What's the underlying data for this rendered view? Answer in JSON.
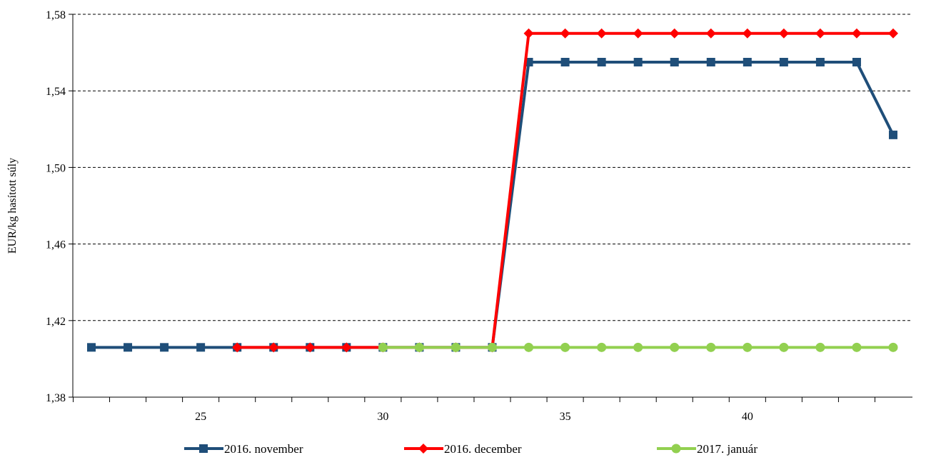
{
  "chart_data": {
    "type": "line",
    "title": "",
    "xlabel": "",
    "ylabel": "EUR/kg hasított súly",
    "x": [
      22,
      23,
      24,
      25,
      26,
      27,
      28,
      29,
      30,
      31,
      32,
      33,
      34,
      35,
      36,
      37,
      38,
      39,
      40,
      41,
      42,
      43,
      44
    ],
    "xlim": [
      22,
      44
    ],
    "ylim": [
      1.38,
      1.58
    ],
    "y_ticks": [
      "1,38",
      "1,42",
      "1,46",
      "1,50",
      "1,54",
      "1,58"
    ],
    "x_ticks": [
      "25",
      "30",
      "35",
      "40"
    ],
    "grid": "horizontal dashed",
    "legend_position": "bottom",
    "series": [
      {
        "name": "2016. november",
        "color": "#1F4E79",
        "marker": "square",
        "x": [
          22,
          23,
          24,
          25,
          26,
          27,
          28,
          29,
          30,
          31,
          32,
          33,
          34,
          35,
          36,
          37,
          38,
          39,
          40,
          41,
          42,
          43,
          44
        ],
        "values": [
          1.406,
          1.406,
          1.406,
          1.406,
          1.406,
          1.406,
          1.406,
          1.406,
          1.406,
          1.406,
          1.406,
          1.406,
          1.555,
          1.555,
          1.555,
          1.555,
          1.555,
          1.555,
          1.555,
          1.555,
          1.555,
          1.555,
          1.517
        ]
      },
      {
        "name": "2016. december",
        "color": "#FF0000",
        "marker": "diamond",
        "x": [
          26,
          27,
          28,
          29,
          30,
          31,
          32,
          33,
          34,
          35,
          36,
          37,
          38,
          39,
          40,
          41,
          42,
          43,
          44
        ],
        "values": [
          1.406,
          1.406,
          1.406,
          1.406,
          1.406,
          1.406,
          1.406,
          1.406,
          1.57,
          1.57,
          1.57,
          1.57,
          1.57,
          1.57,
          1.57,
          1.57,
          1.57,
          1.57,
          1.57
        ]
      },
      {
        "name": "2017. január",
        "color": "#92D050",
        "marker": "circle",
        "x": [
          30,
          31,
          32,
          33,
          34,
          35,
          36,
          37,
          38,
          39,
          40,
          41,
          42,
          43,
          44
        ],
        "values": [
          1.406,
          1.406,
          1.406,
          1.406,
          1.406,
          1.406,
          1.406,
          1.406,
          1.406,
          1.406,
          1.406,
          1.406,
          1.406,
          1.406,
          1.406
        ]
      }
    ]
  }
}
